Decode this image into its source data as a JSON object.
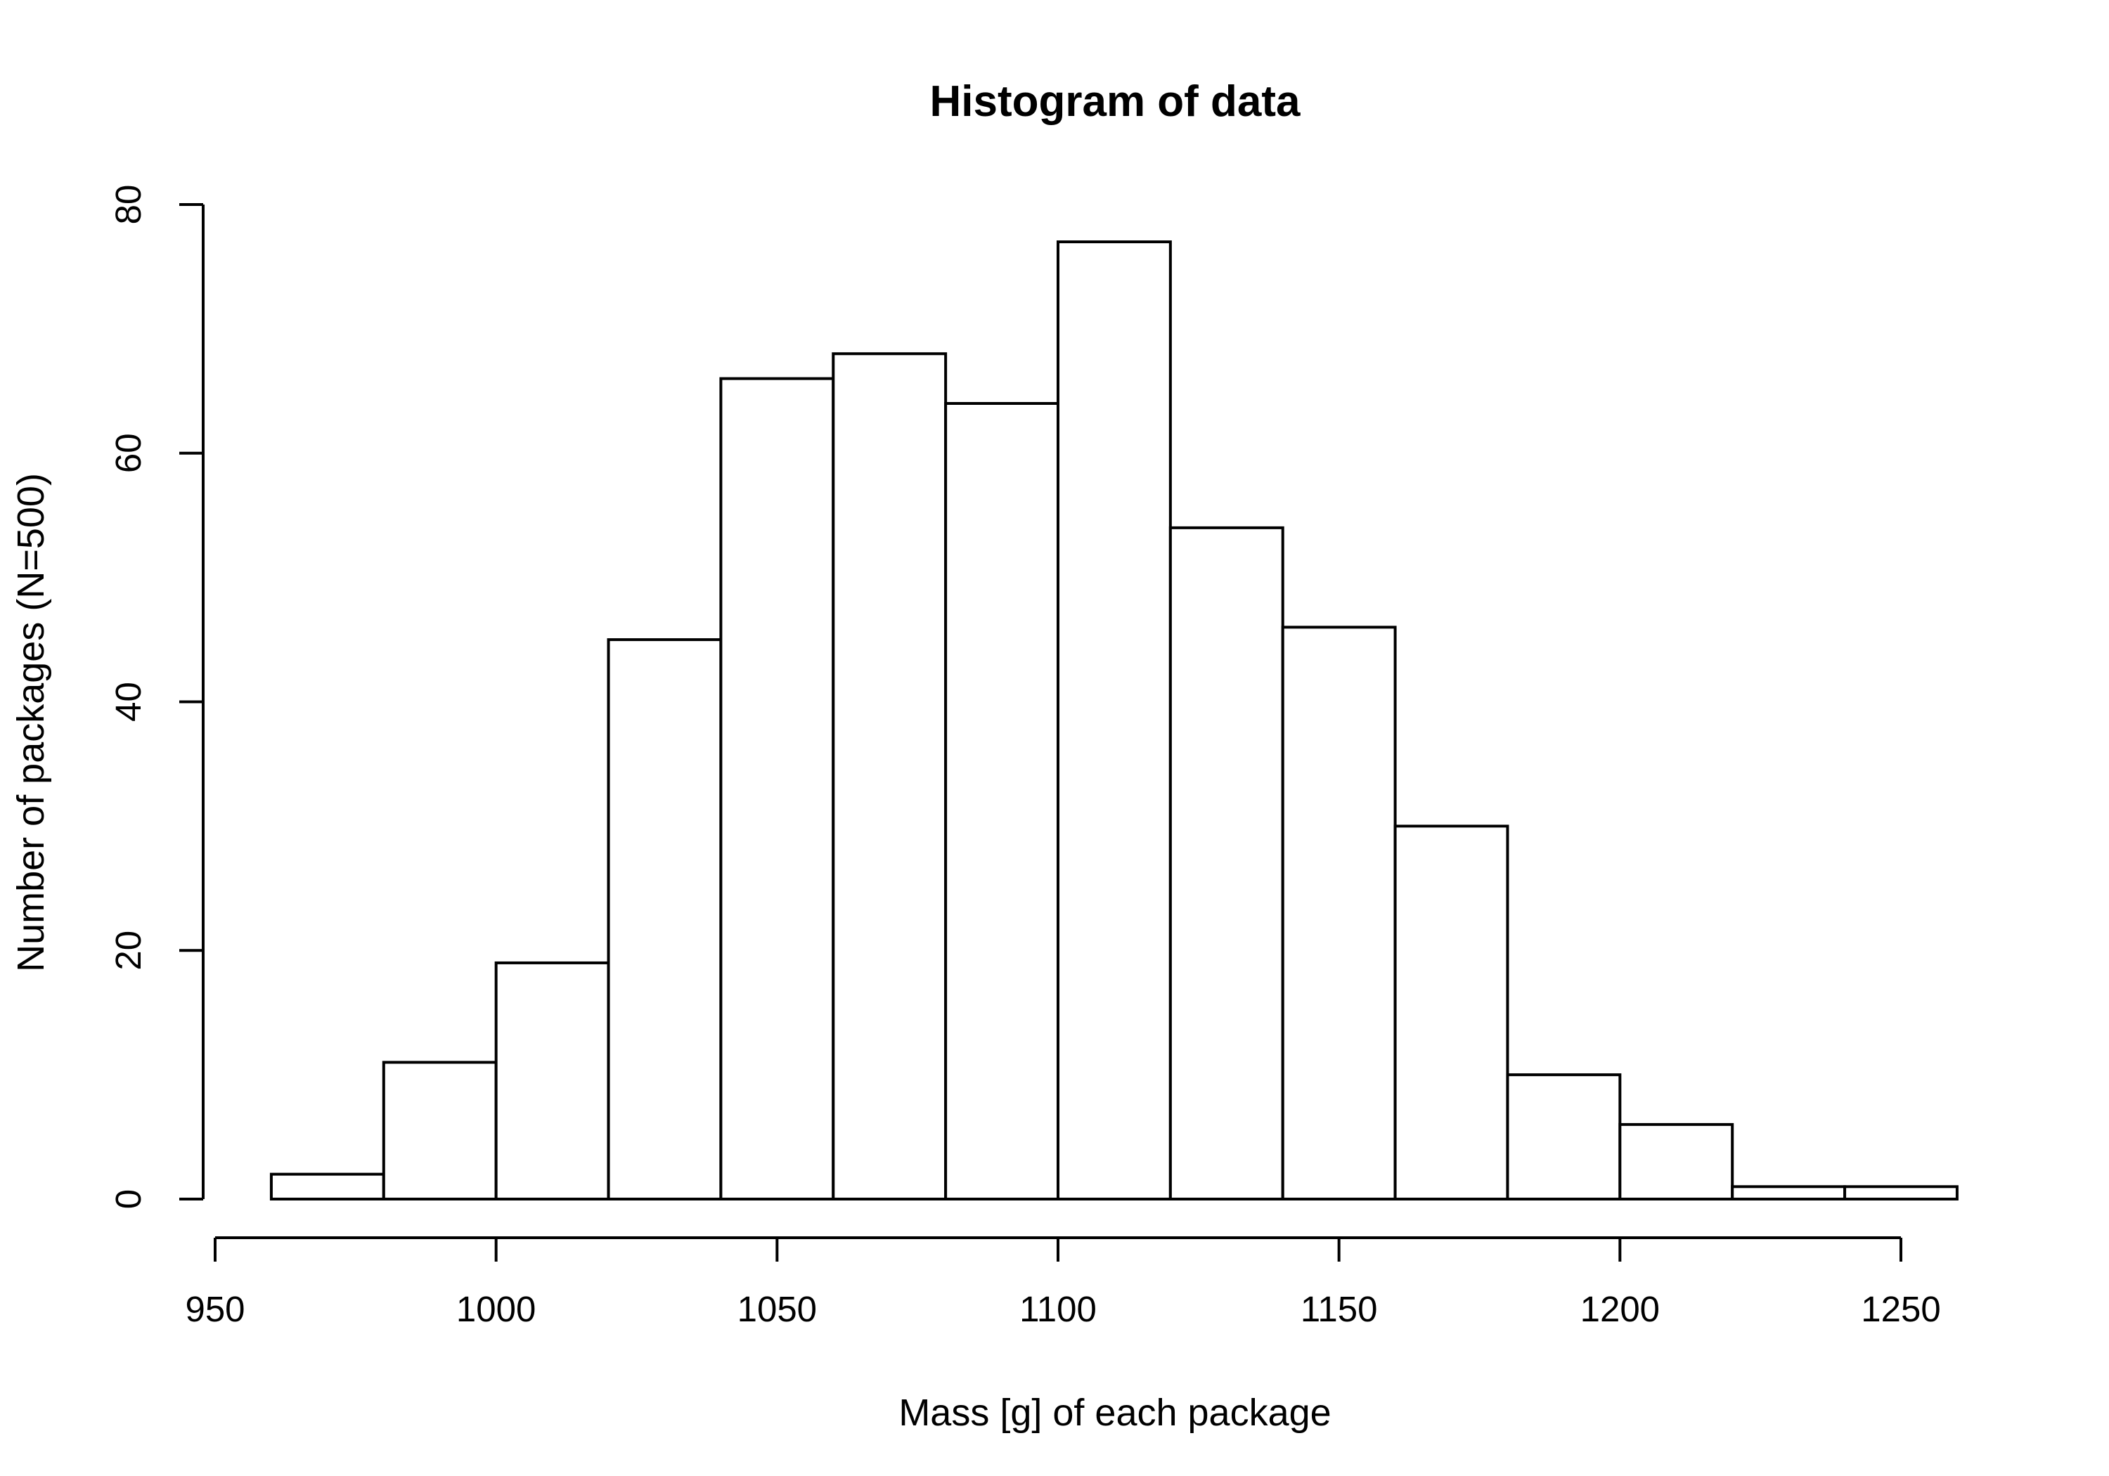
{
  "chart_data": {
    "type": "bar",
    "title": "Histogram of data",
    "xlabel": "Mass [g] of each package",
    "ylabel": "Number of packages (N=500)",
    "bin_edges": [
      960,
      980,
      1000,
      1020,
      1040,
      1060,
      1080,
      1100,
      1120,
      1140,
      1160,
      1180,
      1200,
      1220,
      1240,
      1260
    ],
    "values": [
      2,
      11,
      19,
      45,
      66,
      68,
      64,
      77,
      54,
      46,
      30,
      10,
      6,
      1,
      1
    ],
    "xlim": [
      950,
      1250
    ],
    "ylim": [
      0,
      80
    ],
    "x_ticks": [
      950,
      1000,
      1050,
      1100,
      1150,
      1200,
      1250
    ],
    "y_ticks": [
      0,
      20,
      40,
      60,
      80
    ],
    "x_tick_labels": [
      "950",
      "1000",
      "1050",
      "1100",
      "1150",
      "1200",
      "1250"
    ],
    "y_tick_labels": [
      "0",
      "20",
      "40",
      "60",
      "80"
    ],
    "bar_fill": "#ffffff",
    "bar_stroke": "#000000",
    "grid": false,
    "legend": false
  }
}
